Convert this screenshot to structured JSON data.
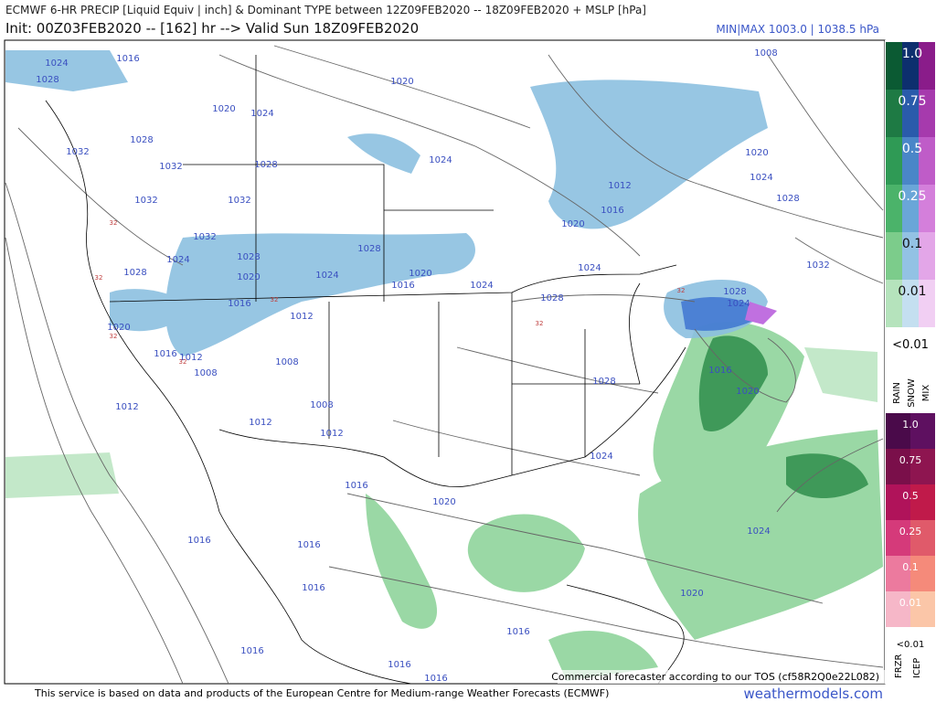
{
  "header": {
    "title": "ECMWF 6-HR PRECIP [Liquid Equiv | inch] & Dominant TYPE between 12Z09FEB2020 -- 18Z09FEB2020 + MSLP [hPa]",
    "subtitle": "Init: 00Z03FEB2020 -- [162] hr --> Valid Sun 18Z09FEB2020",
    "minmax": "MIN|MAX 1003.0 | 1038.5 hPa"
  },
  "map": {
    "isobar_labels": [
      "1024",
      "1016",
      "1028",
      "1020",
      "1020",
      "1024",
      "1028",
      "1032",
      "1032",
      "1028",
      "1024",
      "1032",
      "1032",
      "1032",
      "1024",
      "1028",
      "1028",
      "1020",
      "1016",
      "1028",
      "1024",
      "1020",
      "1016",
      "1024",
      "1012",
      "1020",
      "1016",
      "1012",
      "1008",
      "1008",
      "1012",
      "1008",
      "1012",
      "1012",
      "1016",
      "1020",
      "1016",
      "1016",
      "1016",
      "1016",
      "1016",
      "1016",
      "1016",
      "1020",
      "1024",
      "1024",
      "1028",
      "1028",
      "1024",
      "1020",
      "1016",
      "1012",
      "1008",
      "1020",
      "1024",
      "1028",
      "1032",
      "1028",
      "1024",
      "1016",
      "1020"
    ],
    "contour_labels": [
      "32",
      "32",
      "32",
      "32",
      "32",
      "32",
      "32"
    ]
  },
  "legend": {
    "upper": {
      "labels": [
        "1.0",
        "0.75",
        "0.5",
        "0.25",
        "0.1",
        "0.01"
      ],
      "below": "<0.01",
      "types": [
        "RAIN",
        "SNOW",
        "MIX"
      ]
    },
    "lower": {
      "labels": [
        "1.0",
        "0.75",
        "0.5",
        "0.25",
        "0.1",
        "0.01"
      ],
      "below": "<0.01",
      "types": [
        "FRZR",
        "ICEP"
      ]
    }
  },
  "footer": {
    "disclaimer": "This service is based on data and products of the European Centre for Medium-range Weather Forecasts (ECMWF)",
    "tos": "Commercial forecaster according to our TOS (cf58R2Q0e22L082)",
    "site": "weathermodels.com"
  }
}
